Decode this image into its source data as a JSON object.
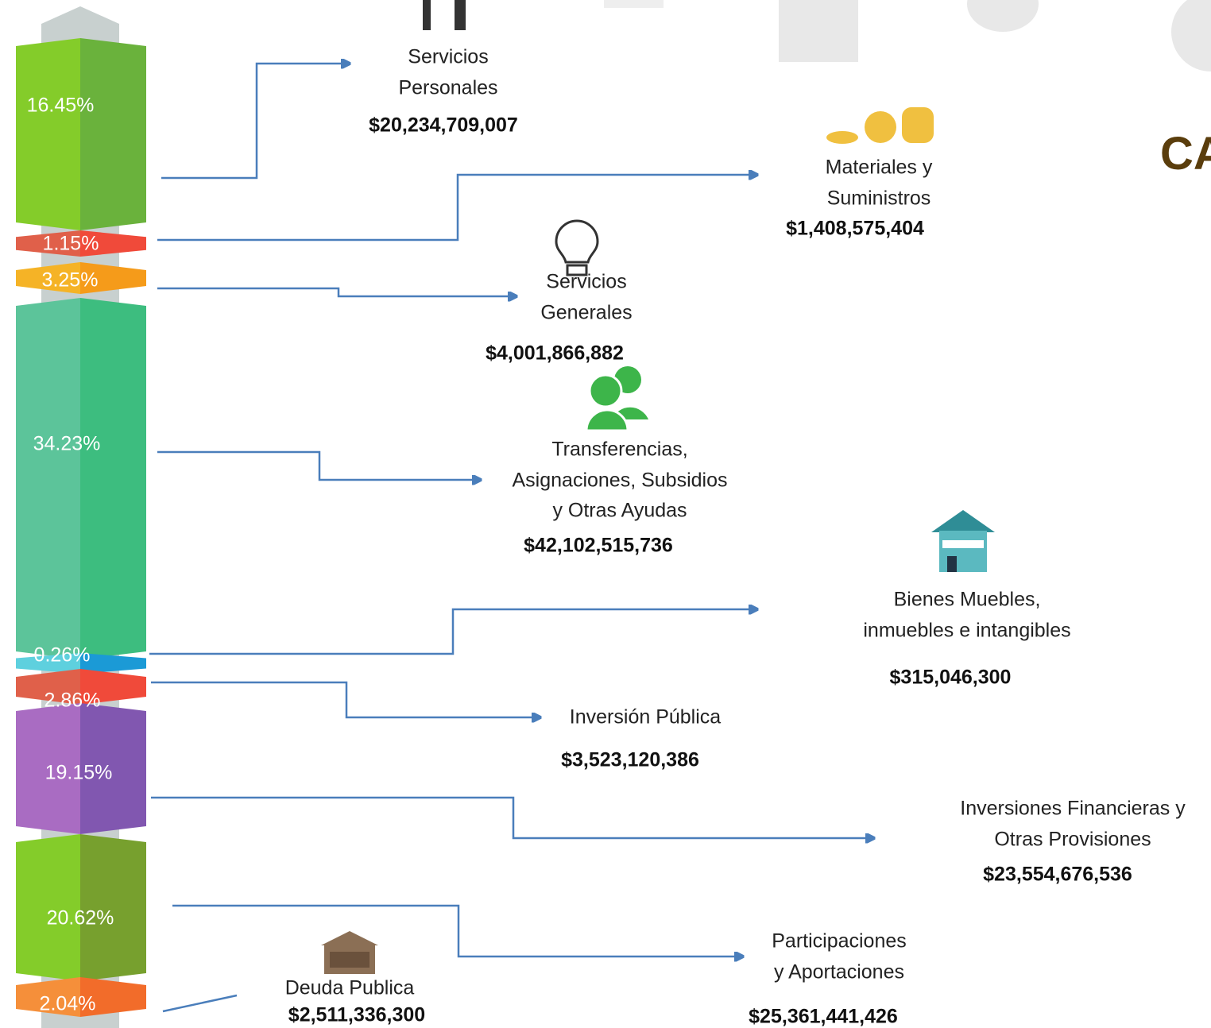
{
  "title": "CA",
  "segments": [
    {
      "label": "16.45%"
    },
    {
      "label": "1.15%"
    },
    {
      "label": "3.25%"
    },
    {
      "label": "34.23%"
    },
    {
      "label": "0.26%"
    },
    {
      "label": "2.86%"
    },
    {
      "label": "19.15%"
    },
    {
      "label": "20.62%"
    },
    {
      "label": "2.04%"
    }
  ],
  "items": [
    {
      "lines": [
        "Servicios",
        "Personales"
      ],
      "amount": "$20,234,709,007"
    },
    {
      "lines": [
        "Materiales y",
        "Suministros"
      ],
      "amount": "$1,408,575,404"
    },
    {
      "lines": [
        "Servicios",
        "Generales"
      ],
      "amount": "$4,001,866,882"
    },
    {
      "lines": [
        "Transferencias,",
        "Asignaciones, Subsidios",
        "y Otras Ayudas"
      ],
      "amount": "$42,102,515,736"
    },
    {
      "lines": [
        "Bienes Muebles,",
        "inmuebles e intangibles"
      ],
      "amount": "$315,046,300"
    },
    {
      "lines": [
        "Inversión Pública"
      ],
      "amount": "$3,523,120,386"
    },
    {
      "lines": [
        "Inversiones Financieras y",
        "Otras Provisiones"
      ],
      "amount": "$23,554,676,536"
    },
    {
      "lines": [
        "Participaciones",
        "y Aportaciones"
      ],
      "amount": "$25,361,441,426"
    },
    {
      "lines": [
        "Deuda Publica"
      ],
      "amount": "$2,511,336,300"
    }
  ]
}
